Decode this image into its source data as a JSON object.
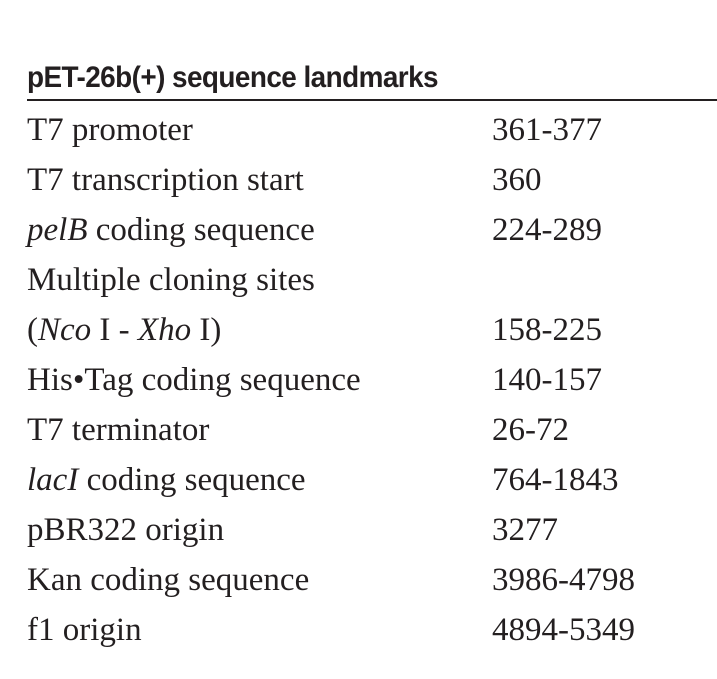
{
  "colors": {
    "background": "#ffffff",
    "text": "#231f20",
    "rule": "#231f20"
  },
  "table": {
    "title": "pET-26b(+) sequence landmarks",
    "rows": [
      {
        "feature": [
          {
            "text": "T7 promoter"
          }
        ],
        "position": "361-377"
      },
      {
        "feature": [
          {
            "text": "T7 transcription start"
          }
        ],
        "position": "360"
      },
      {
        "feature": [
          {
            "text": "pelB",
            "italic": true
          },
          {
            "text": " coding sequence"
          }
        ],
        "position": "224-289"
      },
      {
        "feature": [
          {
            "text": "Multiple cloning sites"
          }
        ],
        "position": ""
      },
      {
        "feature": [
          {
            "text": "("
          },
          {
            "text": "Nco",
            "italic": true
          },
          {
            "text": " I - "
          },
          {
            "text": "Xho",
            "italic": true
          },
          {
            "text": " I)"
          }
        ],
        "position": "158-225"
      },
      {
        "feature": [
          {
            "text": "His•Tag coding sequence"
          }
        ],
        "position": "140-157"
      },
      {
        "feature": [
          {
            "text": "T7 terminator"
          }
        ],
        "position": "26-72"
      },
      {
        "feature": [
          {
            "text": "lacI",
            "italic": true
          },
          {
            "text": " coding sequence"
          }
        ],
        "position": "764-1843"
      },
      {
        "feature": [
          {
            "text": "pBR322 origin"
          }
        ],
        "position": "3277"
      },
      {
        "feature": [
          {
            "text": "Kan coding sequence"
          }
        ],
        "position": "3986-4798"
      },
      {
        "feature": [
          {
            "text": "f1 origin"
          }
        ],
        "position": "4894-5349"
      }
    ]
  }
}
